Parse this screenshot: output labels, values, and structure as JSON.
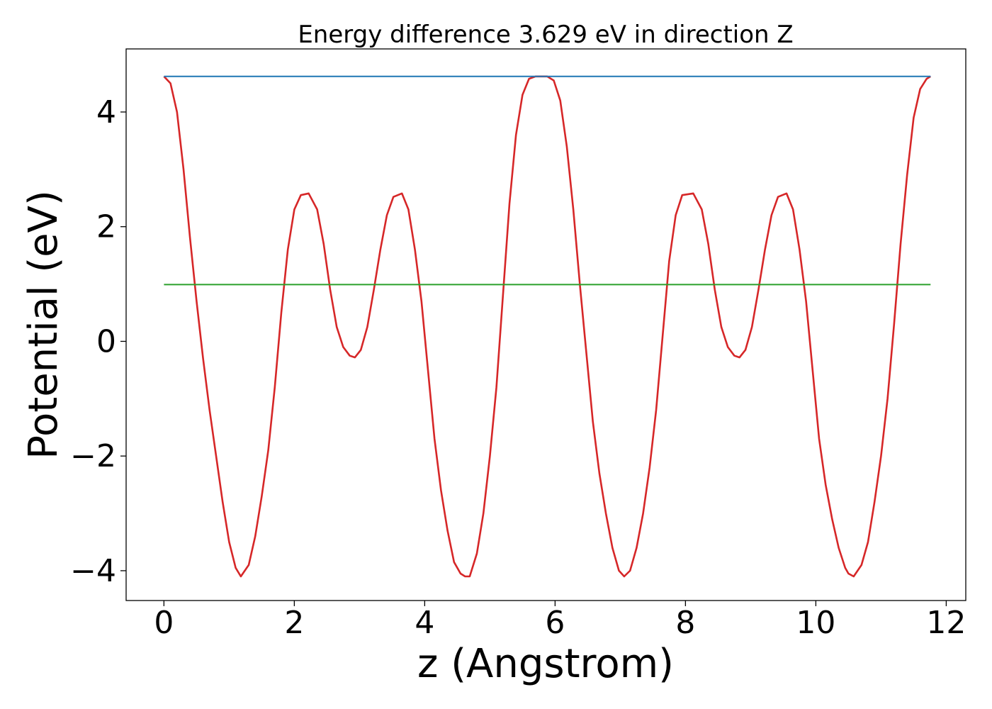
{
  "chart_data": {
    "type": "line",
    "title": "Energy difference 3.629 eV in direction Z",
    "xlabel": "z (Angstrom)",
    "ylabel": "Potential (eV)",
    "xlim": [
      -0.58,
      12.3
    ],
    "ylim": [
      -4.52,
      5.1
    ],
    "xticks": [
      0,
      2,
      4,
      6,
      8,
      10,
      12
    ],
    "xtick_labels": [
      "0",
      "2",
      "4",
      "6",
      "8",
      "10",
      "12"
    ],
    "yticks": [
      -4,
      -2,
      0,
      2,
      4
    ],
    "ytick_labels": [
      "−4",
      "−2",
      "0",
      "2",
      "4"
    ],
    "grid": false,
    "series": [
      {
        "color": "#d62728",
        "x": [
          0,
          0.1,
          0.2,
          0.3,
          0.4,
          0.5,
          0.6,
          0.7,
          0.8,
          0.9,
          1.0,
          1.1,
          1.18,
          1.3,
          1.4,
          1.5,
          1.6,
          1.7,
          1.8,
          1.9,
          2.0,
          2.1,
          2.22,
          2.35,
          2.45,
          2.55,
          2.65,
          2.75,
          2.85,
          2.93,
          3.02,
          3.12,
          3.22,
          3.32,
          3.42,
          3.52,
          3.65,
          3.75,
          3.85,
          3.95,
          4.05,
          4.15,
          4.25,
          4.35,
          4.45,
          4.55,
          4.62,
          4.69,
          4.8,
          4.9,
          5.0,
          5.1,
          5.2,
          5.3,
          5.4,
          5.5,
          5.6,
          5.7,
          5.8,
          5.88,
          5.98,
          6.08,
          6.18,
          6.28,
          6.38,
          6.48,
          6.58,
          6.68,
          6.78,
          6.88,
          6.98,
          7.06,
          7.15,
          7.25,
          7.35,
          7.45,
          7.55,
          7.65,
          7.75,
          7.85,
          7.95,
          8.12,
          8.25,
          8.35,
          8.45,
          8.55,
          8.65,
          8.75,
          8.83,
          8.92,
          9.02,
          9.12,
          9.22,
          9.32,
          9.42,
          9.55,
          9.65,
          9.75,
          9.85,
          9.95,
          10.05,
          10.15,
          10.25,
          10.35,
          10.45,
          10.5,
          10.58,
          10.7,
          10.8,
          10.9,
          11.0,
          11.1,
          11.2,
          11.3,
          11.4,
          11.5,
          11.6,
          11.7,
          11.76
        ],
        "y": [
          4.62,
          4.5,
          4.0,
          3.0,
          1.8,
          0.7,
          -0.3,
          -1.2,
          -2.0,
          -2.8,
          -3.5,
          -3.95,
          -4.1,
          -3.9,
          -3.4,
          -2.7,
          -1.9,
          -0.8,
          0.5,
          1.6,
          2.3,
          2.55,
          2.58,
          2.3,
          1.7,
          0.9,
          0.25,
          -0.1,
          -0.25,
          -0.28,
          -0.15,
          0.25,
          0.9,
          1.6,
          2.2,
          2.52,
          2.58,
          2.3,
          1.6,
          0.7,
          -0.5,
          -1.7,
          -2.6,
          -3.3,
          -3.85,
          -4.05,
          -4.1,
          -4.1,
          -3.7,
          -3.0,
          -2.0,
          -0.8,
          0.8,
          2.4,
          3.6,
          4.3,
          4.58,
          4.62,
          4.62,
          4.62,
          4.55,
          4.2,
          3.4,
          2.3,
          1.0,
          -0.2,
          -1.4,
          -2.3,
          -3.0,
          -3.6,
          -4.0,
          -4.1,
          -4.0,
          -3.6,
          -3.0,
          -2.2,
          -1.2,
          0.1,
          1.4,
          2.2,
          2.55,
          2.58,
          2.3,
          1.7,
          0.9,
          0.25,
          -0.1,
          -0.25,
          -0.28,
          -0.15,
          0.25,
          0.9,
          1.6,
          2.2,
          2.52,
          2.58,
          2.3,
          1.6,
          0.7,
          -0.5,
          -1.7,
          -2.5,
          -3.1,
          -3.6,
          -3.95,
          -4.05,
          -4.1,
          -3.9,
          -3.5,
          -2.8,
          -2.0,
          -1.0,
          0.3,
          1.7,
          2.9,
          3.9,
          4.4,
          4.58,
          4.62
        ]
      },
      {
        "color": "#1f77b4",
        "x": [
          0,
          11.76
        ],
        "y": [
          4.62,
          4.62
        ]
      },
      {
        "color": "#2ca02c",
        "x": [
          0,
          11.76
        ],
        "y": [
          0.99,
          0.99
        ]
      }
    ]
  }
}
